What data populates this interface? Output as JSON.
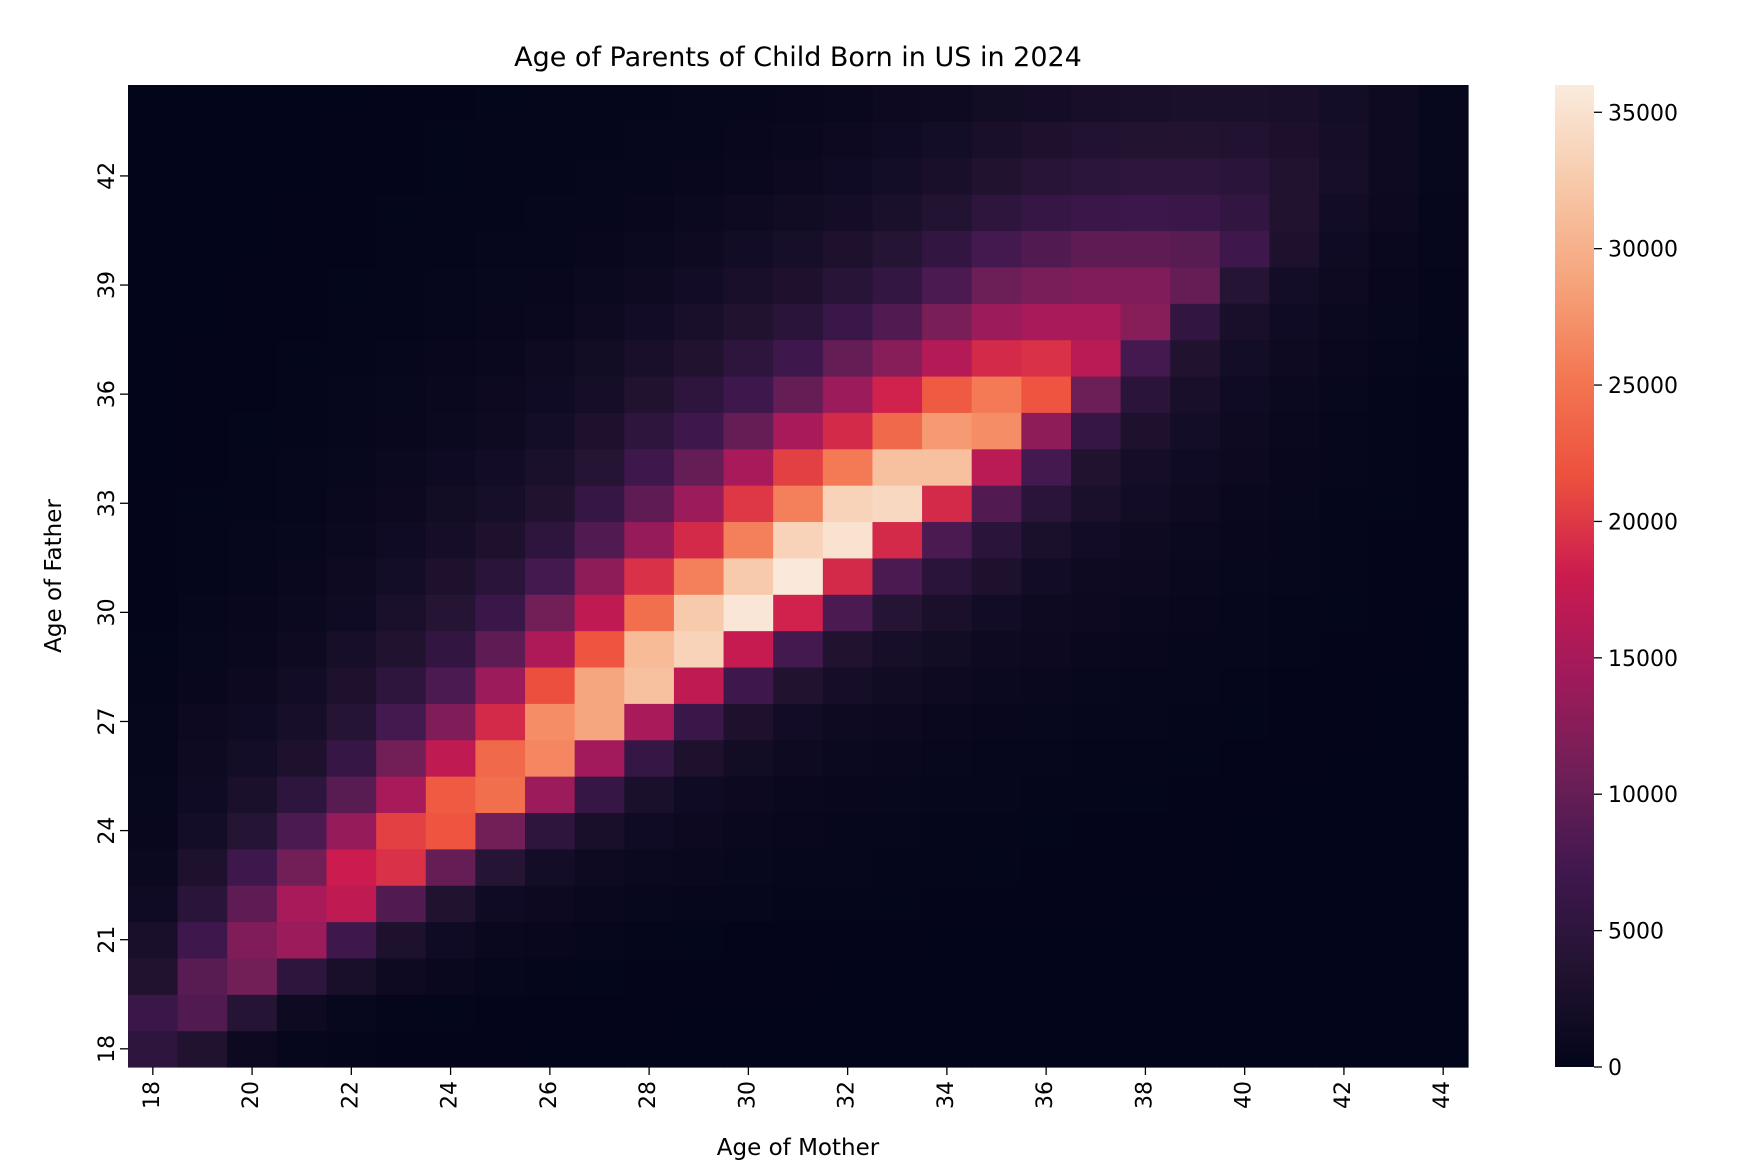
{
  "chart_data": {
    "type": "heatmap",
    "title": "Age of Parents of Child Born in US in 2024",
    "xlabel": "Age of Mother",
    "ylabel": "Age of Father",
    "x": [
      18,
      19,
      20,
      21,
      22,
      23,
      24,
      25,
      26,
      27,
      28,
      29,
      30,
      31,
      32,
      33,
      34,
      35,
      36,
      37,
      38,
      39,
      40,
      41,
      42,
      43,
      44
    ],
    "y": [
      18,
      19,
      20,
      21,
      22,
      23,
      24,
      25,
      26,
      27,
      28,
      29,
      30,
      31,
      32,
      33,
      34,
      35,
      36,
      37,
      38,
      39,
      40,
      41,
      42,
      43,
      44
    ],
    "x_ticks": [
      18,
      20,
      22,
      24,
      26,
      28,
      30,
      32,
      34,
      36,
      38,
      40,
      42,
      44
    ],
    "y_ticks": [
      18,
      21,
      24,
      27,
      30,
      33,
      36,
      39,
      42
    ],
    "colorbar": {
      "min": 0,
      "max": 36000,
      "ticks": [
        0,
        5000,
        10000,
        15000,
        20000,
        25000,
        30000,
        35000
      ],
      "colormap": "rocket"
    },
    "colormap_stops": [
      "#03051a",
      "#221331",
      "#40184f",
      "#701f57",
      "#a11a5b",
      "#cb1b4f",
      "#ed503e",
      "#f37651",
      "#f6a47c",
      "#f7c9aa",
      "#faebdd"
    ],
    "z_rows_by_father_age": [
      [
        5000,
        3500,
        1000,
        300,
        200,
        100,
        80,
        60,
        50,
        40,
        30,
        30,
        20,
        20,
        20,
        20,
        20,
        20,
        10,
        10,
        10,
        10,
        10,
        10,
        10,
        10,
        10
      ],
      [
        6500,
        8500,
        4000,
        1200,
        500,
        200,
        150,
        120,
        100,
        80,
        60,
        50,
        40,
        30,
        30,
        20,
        20,
        20,
        20,
        10,
        10,
        10,
        10,
        10,
        10,
        10,
        10
      ],
      [
        3500,
        9000,
        11000,
        5000,
        2500,
        1200,
        700,
        300,
        200,
        150,
        120,
        100,
        80,
        60,
        50,
        40,
        30,
        30,
        20,
        20,
        20,
        10,
        10,
        10,
        10,
        10,
        10
      ],
      [
        2500,
        7000,
        12000,
        14000,
        7000,
        3000,
        1500,
        800,
        600,
        300,
        200,
        150,
        120,
        100,
        80,
        60,
        50,
        40,
        30,
        30,
        20,
        20,
        10,
        10,
        10,
        10,
        10
      ],
      [
        1500,
        4500,
        9500,
        15000,
        17000,
        8500,
        3500,
        1500,
        1000,
        700,
        500,
        400,
        300,
        250,
        200,
        150,
        120,
        100,
        80,
        60,
        50,
        40,
        30,
        20,
        20,
        10,
        10
      ],
      [
        900,
        3000,
        7000,
        11000,
        18000,
        19500,
        10000,
        4000,
        2000,
        1300,
        900,
        700,
        500,
        400,
        300,
        250,
        200,
        150,
        120,
        100,
        80,
        60,
        40,
        30,
        20,
        20,
        10
      ],
      [
        600,
        2000,
        4000,
        8000,
        13500,
        20500,
        22000,
        11000,
        5000,
        2500,
        1500,
        1000,
        800,
        600,
        400,
        300,
        250,
        200,
        150,
        120,
        100,
        80,
        50,
        40,
        30,
        20,
        10
      ],
      [
        500,
        1500,
        2700,
        5000,
        9000,
        15000,
        22500,
        24500,
        14000,
        6000,
        2700,
        1500,
        1100,
        800,
        600,
        500,
        400,
        300,
        250,
        200,
        150,
        100,
        70,
        50,
        30,
        20,
        10
      ],
      [
        400,
        1200,
        2000,
        3000,
        6000,
        11000,
        17000,
        24000,
        26500,
        14500,
        6000,
        3000,
        1700,
        1200,
        900,
        700,
        500,
        400,
        300,
        250,
        200,
        150,
        100,
        70,
        40,
        30,
        20
      ],
      [
        300,
        1000,
        1500,
        2300,
        4000,
        7500,
        12000,
        19000,
        27000,
        29000,
        15000,
        6500,
        3000,
        1800,
        1300,
        1000,
        800,
        600,
        500,
        400,
        300,
        200,
        150,
        100,
        60,
        40,
        20
      ],
      [
        200,
        600,
        1000,
        1800,
        3000,
        5000,
        8000,
        14000,
        21500,
        29000,
        31500,
        17000,
        7000,
        3500,
        2200,
        1600,
        1200,
        900,
        700,
        500,
        400,
        300,
        200,
        120,
        80,
        50,
        30
      ],
      [
        150,
        500,
        800,
        1300,
        2300,
        3500,
        5500,
        9500,
        15500,
        22000,
        31000,
        33500,
        17500,
        7500,
        3500,
        2300,
        1700,
        1200,
        1000,
        800,
        600,
        400,
        300,
        200,
        120,
        70,
        40
      ],
      [
        100,
        300,
        600,
        900,
        1500,
        2800,
        4000,
        6500,
        11000,
        17000,
        24500,
        32500,
        35500,
        18500,
        8000,
        4000,
        2800,
        1800,
        1300,
        1000,
        800,
        600,
        400,
        250,
        150,
        80,
        50
      ],
      [
        100,
        250,
        400,
        700,
        1200,
        2000,
        3000,
        4500,
        7500,
        13000,
        19500,
        26000,
        32500,
        35800,
        19000,
        8000,
        4500,
        3000,
        1800,
        1300,
        1000,
        700,
        500,
        300,
        180,
        100,
        60
      ],
      [
        80,
        200,
        350,
        500,
        900,
        1500,
        2200,
        3000,
        5000,
        8500,
        13500,
        19000,
        26000,
        33500,
        35000,
        19000,
        8000,
        4500,
        2800,
        1800,
        1300,
        900,
        600,
        400,
        220,
        120,
        70
      ],
      [
        60,
        150,
        250,
        400,
        700,
        1100,
        1700,
        2300,
        3500,
        6000,
        9500,
        14000,
        20000,
        26000,
        33500,
        34000,
        19000,
        8500,
        4500,
        2800,
        1800,
        1200,
        800,
        500,
        280,
        150,
        80
      ],
      [
        50,
        120,
        200,
        300,
        500,
        900,
        1400,
        1800,
        2800,
        4000,
        7000,
        10000,
        15000,
        20500,
        25500,
        31500,
        31500,
        16500,
        7500,
        3500,
        2200,
        1500,
        1000,
        600,
        350,
        180,
        90
      ],
      [
        40,
        100,
        150,
        250,
        400,
        600,
        900,
        1200,
        2000,
        3000,
        5000,
        7000,
        10000,
        15000,
        19000,
        24000,
        28000,
        27000,
        13000,
        6000,
        3000,
        2000,
        1200,
        700,
        400,
        200,
        100
      ],
      [
        30,
        80,
        120,
        200,
        300,
        450,
        700,
        1000,
        1500,
        2200,
        3500,
        5000,
        7000,
        10000,
        14000,
        18500,
        22500,
        25500,
        22000,
        10500,
        4500,
        2500,
        1500,
        900,
        500,
        250,
        120
      ],
      [
        25,
        60,
        100,
        150,
        250,
        350,
        600,
        800,
        1200,
        1700,
        2500,
        3500,
        5000,
        7000,
        10000,
        12500,
        16000,
        19000,
        19500,
        16500,
        7500,
        3500,
        2000,
        1200,
        700,
        350,
        150
      ],
      [
        20,
        50,
        80,
        120,
        180,
        280,
        400,
        600,
        800,
        1200,
        1800,
        2500,
        3500,
        4500,
        6500,
        8500,
        11500,
        14000,
        15000,
        15000,
        12500,
        5500,
        2500,
        1500,
        900,
        450,
        200
      ],
      [
        15,
        40,
        60,
        100,
        150,
        220,
        320,
        500,
        600,
        900,
        1300,
        1800,
        2500,
        3200,
        4300,
        5800,
        8000,
        10500,
        11500,
        12000,
        12000,
        10000,
        4000,
        2000,
        1200,
        600,
        250
      ],
      [
        10,
        30,
        50,
        80,
        120,
        180,
        260,
        350,
        400,
        600,
        900,
        1300,
        1800,
        2300,
        3000,
        4000,
        5500,
        7500,
        8500,
        9500,
        9500,
        9000,
        7000,
        3000,
        1500,
        800,
        300
      ],
      [
        10,
        25,
        40,
        60,
        90,
        140,
        200,
        280,
        330,
        400,
        600,
        900,
        1200,
        1600,
        2100,
        2800,
        3700,
        5000,
        6000,
        6500,
        6700,
        6500,
        5500,
        3500,
        1800,
        1000,
        350
      ],
      [
        10,
        20,
        30,
        50,
        70,
        110,
        160,
        220,
        270,
        330,
        400,
        600,
        800,
        1100,
        1500,
        2000,
        2600,
        3500,
        4200,
        4700,
        5000,
        5000,
        4500,
        3500,
        2300,
        1200,
        500
      ],
      [
        10,
        15,
        25,
        40,
        60,
        90,
        130,
        180,
        220,
        270,
        330,
        400,
        600,
        800,
        1100,
        1500,
        2000,
        2500,
        3000,
        3400,
        3600,
        3600,
        3400,
        2900,
        2200,
        1300,
        500
      ],
      [
        10,
        15,
        20,
        30,
        50,
        70,
        100,
        150,
        180,
        220,
        270,
        330,
        400,
        550,
        750,
        1000,
        1300,
        1700,
        2100,
        2400,
        2600,
        2700,
        2700,
        2500,
        2000,
        1300,
        500
      ]
    ]
  }
}
